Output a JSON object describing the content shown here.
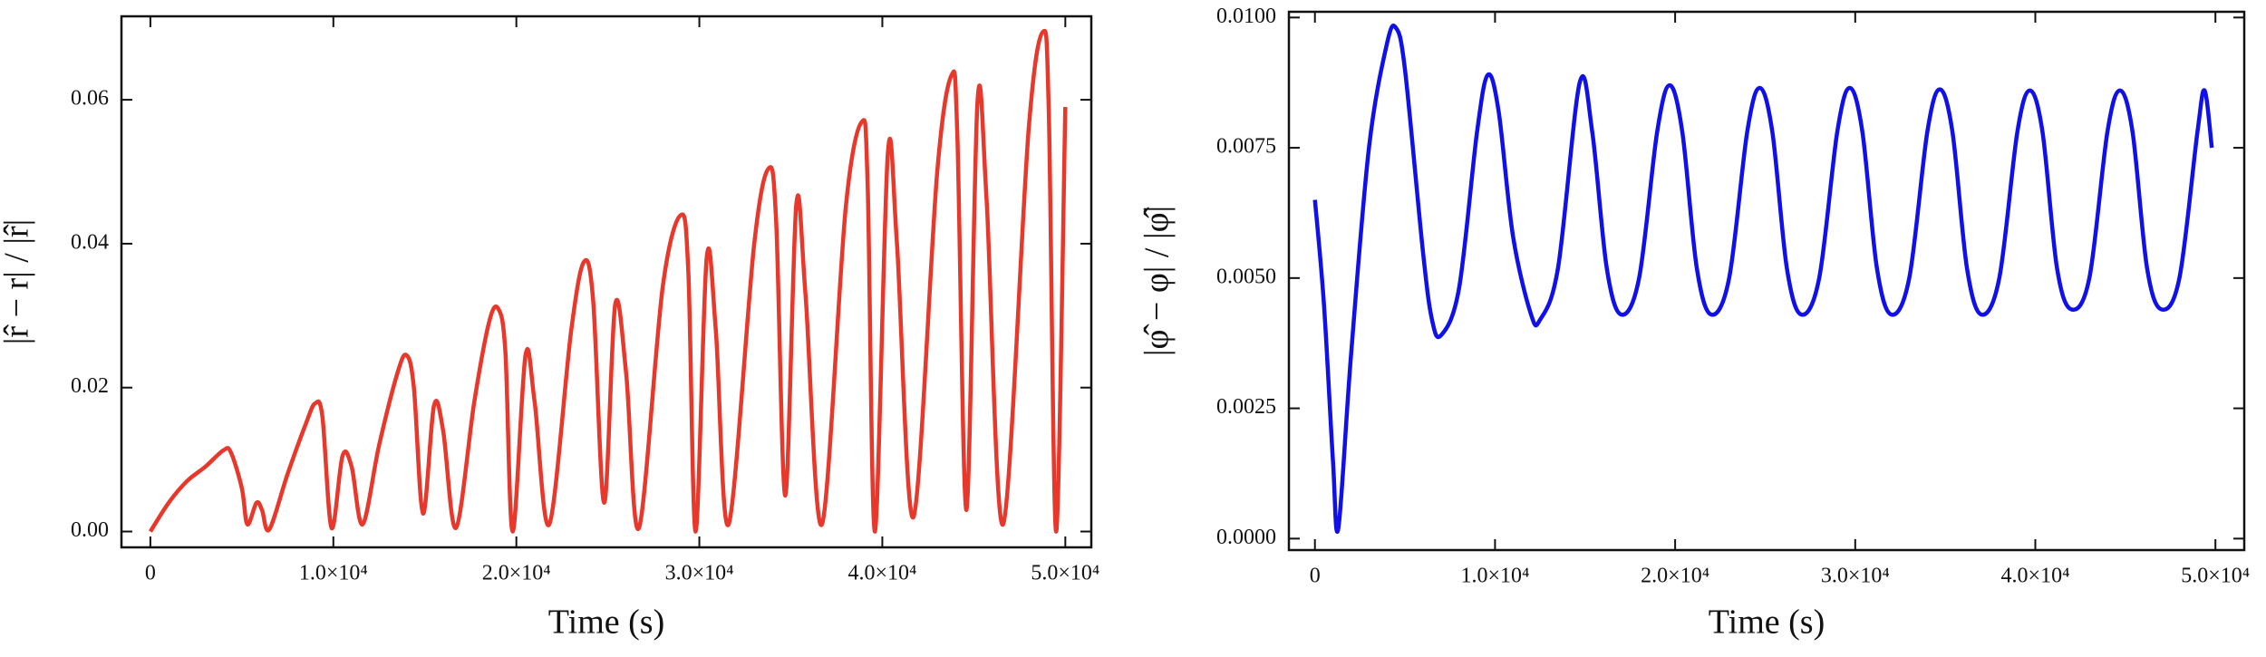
{
  "chart_data": [
    {
      "type": "line",
      "xlabel": "Time (s)",
      "ylabel": "|r̂ − r| / |r̂|",
      "xlim": [
        -1580,
        51420
      ],
      "ylim": [
        -0.0022,
        0.0716
      ],
      "xticks": [
        0,
        {
          "value": 10000,
          "label": "1.0×10⁴"
        },
        {
          "value": 20000,
          "label": "2.0×10⁴"
        },
        {
          "value": 30000,
          "label": "3.0×10⁴"
        },
        {
          "value": 40000,
          "label": "4.0×10⁴"
        },
        {
          "value": 50000,
          "label": "5.0×10⁴"
        }
      ],
      "yticks": [
        {
          "value": 0,
          "label": "0.00"
        },
        {
          "value": 0.02,
          "label": "0.02"
        },
        {
          "value": 0.04,
          "label": "0.04"
        },
        {
          "value": 0.06,
          "label": "0.06"
        }
      ],
      "x": [
        0,
        1000,
        2000,
        3000,
        4000,
        4400,
        5000,
        5300,
        5800,
        6100,
        6500,
        7500,
        8500,
        9000,
        9400,
        9900,
        10500,
        11000,
        11600,
        12500,
        13500,
        14000,
        14400,
        14900,
        15500,
        16000,
        16700,
        17700,
        18500,
        19000,
        19400,
        19800,
        20500,
        21000,
        21800,
        23000,
        23700,
        24200,
        24800,
        25400,
        26000,
        26700,
        28000,
        29000,
        29400,
        29800,
        30400,
        30900,
        31600,
        33000,
        33800,
        34200,
        34700,
        35300,
        35800,
        36700,
        38000,
        38900,
        39200,
        39600,
        40300,
        40800,
        41700,
        43000,
        43800,
        44100,
        44600,
        45200,
        45700,
        46600,
        48000,
        48800,
        49100,
        49500,
        50000
      ],
      "series": [
        {
          "color": "#e8382c",
          "values": [
            0,
            0.004,
            0.007,
            0.009,
            0.0113,
            0.011,
            0.006,
            0.001,
            0.004,
            0.003,
            0.0003,
            0.008,
            0.015,
            0.0178,
            0.016,
            0.0005,
            0.0105,
            0.009,
            0.001,
            0.012,
            0.022,
            0.0245,
            0.02,
            0.0025,
            0.0175,
            0.014,
            0.0005,
            0.018,
            0.029,
            0.031,
            0.025,
            0,
            0.0245,
            0.018,
            0.001,
            0.028,
            0.0375,
            0.032,
            0.004,
            0.0315,
            0.022,
            0.0005,
            0.034,
            0.044,
            0.036,
            0,
            0.038,
            0.028,
            0.001,
            0.04,
            0.0505,
            0.043,
            0.005,
            0.0455,
            0.033,
            0.001,
            0.045,
            0.057,
            0.048,
            0,
            0.0525,
            0.04,
            0.002,
            0.05,
            0.0635,
            0.055,
            0.003,
            0.0597,
            0.046,
            0.001,
            0.056,
            0.0695,
            0.058,
            0,
            0.059
          ]
        }
      ]
    },
    {
      "type": "line",
      "xlabel": "Time (s)",
      "ylabel": "|φ̂ − φ| / |φ̂|",
      "xlim": [
        -1445,
        51600
      ],
      "ylim": [
        -0.00022,
        0.01011
      ],
      "xticks": [
        0,
        {
          "value": 10000,
          "label": "1.0×10⁴"
        },
        {
          "value": 20000,
          "label": "2.0×10⁴"
        },
        {
          "value": 30000,
          "label": "3.0×10⁴"
        },
        {
          "value": 40000,
          "label": "4.0×10⁴"
        },
        {
          "value": 50000,
          "label": "5.0×10⁴"
        }
      ],
      "yticks": [
        {
          "value": 0,
          "label": "0.0000"
        },
        {
          "value": 0.0025,
          "label": "0.0025"
        },
        {
          "value": 0.005,
          "label": "0.0050"
        },
        {
          "value": 0.0075,
          "label": "0.0075"
        },
        {
          "value": 0.01,
          "label": "0.0100"
        }
      ],
      "x": [
        0,
        500,
        1000,
        1300,
        2000,
        3000,
        4000,
        4500,
        5000,
        6000,
        6500,
        7000,
        8000,
        9000,
        9600,
        10200,
        11000,
        12000,
        12500,
        13500,
        14700,
        15400,
        16200,
        17000,
        18000,
        19000,
        19700,
        20400,
        21200,
        22000,
        23000,
        24000,
        24700,
        25400,
        26200,
        27000,
        28000,
        29000,
        29700,
        30400,
        31200,
        32000,
        33000,
        34000,
        34700,
        35400,
        36200,
        37000,
        38000,
        39000,
        39700,
        40400,
        41200,
        42000,
        43000,
        44000,
        44700,
        45400,
        46200,
        47000,
        48000,
        49000,
        49400,
        49800
      ],
      "series": [
        {
          "color": "#1010e8",
          "values": [
            0.0065,
            0.0045,
            0.0015,
            0.0002,
            0.0035,
            0.0075,
            0.0095,
            0.0098,
            0.009,
            0.0055,
            0.0042,
            0.0039,
            0.0048,
            0.0078,
            0.0089,
            0.0082,
            0.0058,
            0.0043,
            0.0042,
            0.0052,
            0.00875,
            0.0078,
            0.0052,
            0.0043,
            0.005,
            0.0078,
            0.0087,
            0.0078,
            0.0052,
            0.0043,
            0.005,
            0.0078,
            0.00865,
            0.0078,
            0.0052,
            0.0043,
            0.005,
            0.0078,
            0.00865,
            0.0078,
            0.0052,
            0.0043,
            0.005,
            0.0078,
            0.00862,
            0.0078,
            0.0052,
            0.0043,
            0.005,
            0.0078,
            0.0086,
            0.0078,
            0.0052,
            0.0044,
            0.005,
            0.0078,
            0.0086,
            0.0078,
            0.0052,
            0.0044,
            0.005,
            0.0078,
            0.0086,
            0.0075
          ]
        }
      ]
    }
  ]
}
